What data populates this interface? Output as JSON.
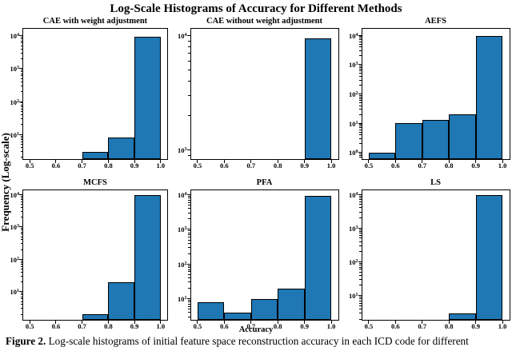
{
  "figure": {
    "title": "Log-Scale Histograms of Accuracy for Different Methods",
    "ylabel": "Frequency (Log-scale)",
    "xlabel": "Accuracy",
    "caption": {
      "label": "Figure 2.",
      "text": " Log-scale histograms of initial feature space reconstruction accuracy in each ICD code for different"
    }
  },
  "colors": {
    "bar_fill": "#1f77b4",
    "bar_edge": "#000000",
    "text": "#000000",
    "background": "#ffffff"
  },
  "chart_data": [
    {
      "id": "cae-with-weight-adjustment",
      "type": "bar",
      "title": "CAE with weight adjustment",
      "yscale": "log",
      "grid": false,
      "bin_edges": [
        0.5,
        0.6,
        0.7,
        0.8,
        0.9,
        1.0
      ],
      "counts": [
        0,
        0,
        3,
        8,
        9500
      ],
      "xticks": [
        0.5,
        0.6,
        0.7,
        0.8,
        0.9,
        1.0
      ],
      "ytick_exps": [
        1,
        2,
        3,
        4
      ],
      "xlim": [
        0.475,
        1.025
      ],
      "ylim_exp": [
        0.25,
        4.21
      ]
    },
    {
      "id": "cae-without-weight-adjustment",
      "type": "bar",
      "title": "CAE without weight adjustment",
      "yscale": "log",
      "grid": false,
      "bin_edges": [
        0.5,
        0.6,
        0.7,
        0.8,
        0.9,
        1.0
      ],
      "counts": [
        0,
        0,
        0,
        0,
        9500
      ],
      "xticks": [
        0.5,
        0.6,
        0.7,
        0.8,
        0.9,
        1.0
      ],
      "ytick_exps": [
        3,
        4
      ],
      "xlim": [
        0.475,
        1.025
      ],
      "ylim_exp": [
        2.92,
        4.06
      ]
    },
    {
      "id": "aefs",
      "type": "bar",
      "title": "AEFS",
      "yscale": "log",
      "grid": false,
      "bin_edges": [
        0.5,
        0.6,
        0.7,
        0.8,
        0.9,
        1.0
      ],
      "counts": [
        1,
        10,
        13,
        20,
        9500
      ],
      "xticks": [
        0.5,
        0.6,
        0.7,
        0.8,
        0.9,
        1.0
      ],
      "ytick_exps": [
        0,
        1,
        2,
        3,
        4
      ],
      "xlim": [
        0.475,
        1.025
      ],
      "ylim_exp": [
        -0.22,
        4.22
      ]
    },
    {
      "id": "mcfs",
      "type": "bar",
      "title": "MCFS",
      "yscale": "log",
      "grid": false,
      "bin_edges": [
        0.5,
        0.6,
        0.7,
        0.8,
        0.9,
        1.0
      ],
      "counts": [
        0,
        0,
        2,
        20,
        9500
      ],
      "xticks": [
        0.5,
        0.6,
        0.7,
        0.8,
        0.9,
        1.0
      ],
      "ytick_exps": [
        1,
        2,
        3,
        4
      ],
      "xlim": [
        0.475,
        1.025
      ],
      "ylim_exp": [
        0.13,
        4.13
      ]
    },
    {
      "id": "pfa",
      "type": "bar",
      "title": "PFA",
      "yscale": "log",
      "grid": false,
      "bin_edges": [
        0.5,
        0.6,
        0.7,
        0.8,
        0.9,
        1.0
      ],
      "counts": [
        8,
        4,
        10,
        20,
        9500
      ],
      "xticks": [
        0.5,
        0.6,
        0.7,
        0.8,
        0.9,
        1.0
      ],
      "ytick_exps": [
        1,
        2,
        3,
        4
      ],
      "xlim": [
        0.475,
        1.025
      ],
      "ylim_exp": [
        0.39,
        4.13
      ]
    },
    {
      "id": "ls",
      "type": "bar",
      "title": "LS",
      "yscale": "log",
      "grid": false,
      "bin_edges": [
        0.5,
        0.6,
        0.7,
        0.8,
        0.9,
        1.0
      ],
      "counts": [
        0,
        0,
        0,
        3,
        9500
      ],
      "xticks": [
        0.5,
        0.6,
        0.7,
        0.8,
        0.9,
        1.0
      ],
      "ytick_exps": [
        1,
        2,
        3,
        4
      ],
      "xlim": [
        0.475,
        1.025
      ],
      "ylim_exp": [
        0.28,
        4.12
      ]
    }
  ]
}
